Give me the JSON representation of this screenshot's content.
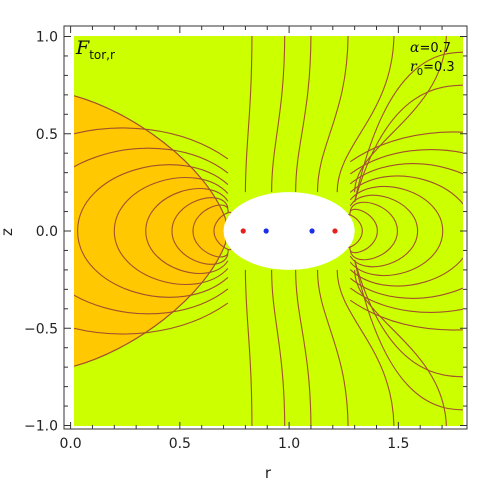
{
  "chart_data": {
    "type": "contour",
    "title": {
      "main": "F",
      "subscript": "tor,r"
    },
    "xlabel": "r",
    "ylabel": "z",
    "xlim": [
      -0.03,
      1.82
    ],
    "ylim": [
      -1.02,
      1.02
    ],
    "xticks": [
      0.0,
      0.5,
      1.0,
      1.5
    ],
    "xtick_labels": [
      "0.0",
      "0.5",
      "1.0",
      "1.5"
    ],
    "yticks": [
      -1.0,
      -0.5,
      0.0,
      0.5,
      1.0
    ],
    "ytick_labels": [
      "−1.0",
      "−0.5",
      "0.0",
      "0.5",
      "1.0"
    ],
    "parameters": [
      {
        "symbol": "α",
        "value": "=0.7"
      },
      {
        "symbol": "r",
        "subscript": "0",
        "value": "=0.3"
      }
    ],
    "colors": {
      "background_region": "#ccff00",
      "positive_region": "#ffc800",
      "contour_line": "#a0522d",
      "hole_fill": "#ffffff",
      "outer_points": "#e8201c",
      "inner_points": "#1c2ee8"
    },
    "domain": {
      "r": [
        0.0,
        1.8
      ],
      "z": [
        -1.0,
        1.0
      ]
    },
    "excluded_ellipse": {
      "center_r": 1.0,
      "center_z": 0.0,
      "semi_r": 0.3,
      "semi_z": 0.2
    },
    "points": [
      {
        "r": 0.79,
        "z": 0.0,
        "color": "outer_points"
      },
      {
        "r": 0.895,
        "z": 0.0,
        "color": "inner_points"
      },
      {
        "r": 1.105,
        "z": 0.0,
        "color": "inner_points"
      },
      {
        "r": 1.21,
        "z": 0.0,
        "color": "outer_points"
      }
    ],
    "contour_levels": 22
  }
}
